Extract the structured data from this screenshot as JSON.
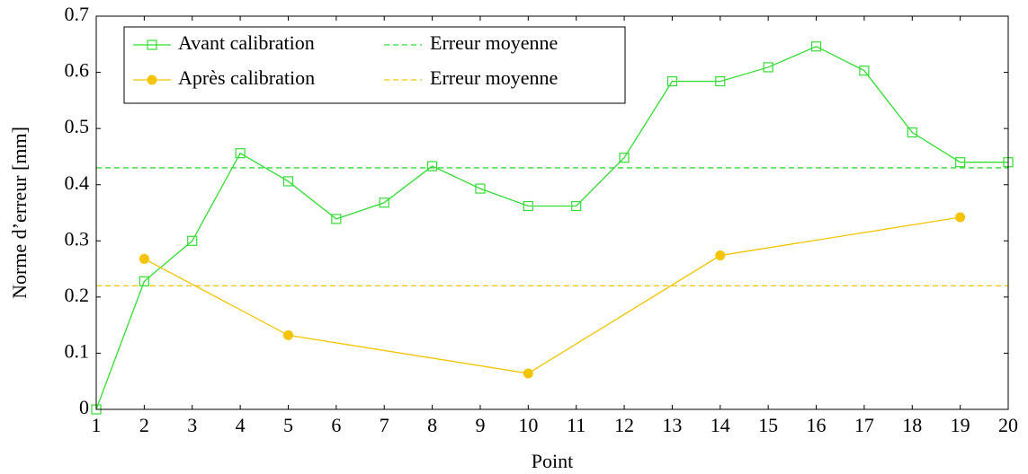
{
  "chart_data": {
    "type": "line",
    "xlabel": "Point",
    "ylabel": "Norme d’erreur [mm]",
    "xlim": [
      1,
      20
    ],
    "ylim": [
      0,
      0.7
    ],
    "xticks": [
      1,
      2,
      3,
      4,
      5,
      6,
      7,
      8,
      9,
      10,
      11,
      12,
      13,
      14,
      15,
      16,
      17,
      18,
      19,
      20
    ],
    "yticks": [
      0,
      0.1,
      0.2,
      0.3,
      0.4,
      0.5,
      0.6,
      0.7
    ],
    "legend": "upper left",
    "series": [
      {
        "name": "Avant calibration",
        "color": "#33dd33",
        "marker": "square",
        "x": [
          1,
          2,
          3,
          4,
          5,
          6,
          7,
          8,
          9,
          10,
          11,
          12,
          13,
          14,
          15,
          16,
          17,
          18,
          19,
          20
        ],
        "values": [
          0,
          0.228,
          0.3,
          0.456,
          0.406,
          0.339,
          0.368,
          0.433,
          0.393,
          0.362,
          0.362,
          0.448,
          0.584,
          0.584,
          0.609,
          0.646,
          0.603,
          0.493,
          0.44,
          0.44
        ]
      },
      {
        "name": "Après calibration",
        "color": "#f5c400",
        "marker": "circle",
        "x": [
          2,
          5,
          10,
          14,
          19
        ],
        "values": [
          0.268,
          0.132,
          0.064,
          0.274,
          0.342
        ]
      }
    ],
    "mean_lines": [
      {
        "name": "Erreur moyenne",
        "color": "#33dd33",
        "value": 0.43
      },
      {
        "name": "Erreur moyenne",
        "color": "#f5c400",
        "value": 0.22
      }
    ]
  }
}
